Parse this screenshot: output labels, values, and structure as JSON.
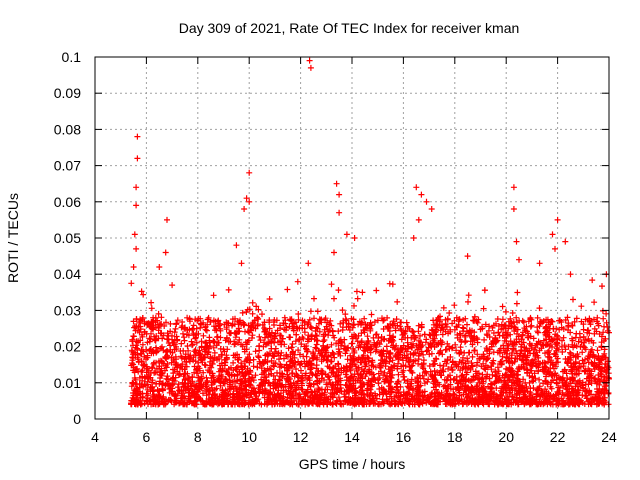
{
  "chart_data": {
    "type": "scatter",
    "title": "Day 309 of 2021, Rate Of TEC Index for receiver kman",
    "xlabel": "GPS time / hours",
    "ylabel": "ROTI / TECUs",
    "xlim": [
      4,
      24
    ],
    "ylim": [
      0,
      0.1
    ],
    "x_ticks": [
      "4",
      "6",
      "8",
      "10",
      "12",
      "14",
      "16",
      "18",
      "20",
      "22",
      "24"
    ],
    "y_ticks": [
      "0",
      "0.01",
      "0.02",
      "0.03",
      "0.04",
      "0.05",
      "0.06",
      "0.07",
      "0.08",
      "0.09",
      "0.1"
    ],
    "grid": true,
    "marker": "+",
    "color": "#ff0000",
    "x_range_of_data": [
      5.4,
      24.0
    ],
    "typical_y_band": [
      0.005,
      0.025
    ],
    "notable_points": [
      {
        "x": 5.65,
        "y": 0.078
      },
      {
        "x": 5.65,
        "y": 0.072
      },
      {
        "x": 5.6,
        "y": 0.064
      },
      {
        "x": 5.6,
        "y": 0.059
      },
      {
        "x": 5.55,
        "y": 0.051
      },
      {
        "x": 5.6,
        "y": 0.047
      },
      {
        "x": 5.5,
        "y": 0.042
      },
      {
        "x": 6.8,
        "y": 0.055
      },
      {
        "x": 6.75,
        "y": 0.046
      },
      {
        "x": 6.5,
        "y": 0.042
      },
      {
        "x": 7.0,
        "y": 0.037
      },
      {
        "x": 9.5,
        "y": 0.048
      },
      {
        "x": 9.8,
        "y": 0.058
      },
      {
        "x": 9.9,
        "y": 0.061
      },
      {
        "x": 10.0,
        "y": 0.068
      },
      {
        "x": 10.0,
        "y": 0.06
      },
      {
        "x": 9.7,
        "y": 0.043
      },
      {
        "x": 12.35,
        "y": 0.099
      },
      {
        "x": 12.4,
        "y": 0.097
      },
      {
        "x": 12.3,
        "y": 0.043
      },
      {
        "x": 13.4,
        "y": 0.065
      },
      {
        "x": 13.5,
        "y": 0.062
      },
      {
        "x": 13.5,
        "y": 0.057
      },
      {
        "x": 13.8,
        "y": 0.051
      },
      {
        "x": 14.1,
        "y": 0.05
      },
      {
        "x": 13.3,
        "y": 0.046
      },
      {
        "x": 16.5,
        "y": 0.064
      },
      {
        "x": 16.7,
        "y": 0.062
      },
      {
        "x": 16.6,
        "y": 0.055
      },
      {
        "x": 16.9,
        "y": 0.06
      },
      {
        "x": 17.1,
        "y": 0.058
      },
      {
        "x": 16.4,
        "y": 0.05
      },
      {
        "x": 18.5,
        "y": 0.045
      },
      {
        "x": 20.3,
        "y": 0.064
      },
      {
        "x": 20.3,
        "y": 0.058
      },
      {
        "x": 20.4,
        "y": 0.049
      },
      {
        "x": 20.5,
        "y": 0.044
      },
      {
        "x": 21.3,
        "y": 0.043
      },
      {
        "x": 21.8,
        "y": 0.051
      },
      {
        "x": 21.9,
        "y": 0.047
      },
      {
        "x": 22.0,
        "y": 0.055
      },
      {
        "x": 22.3,
        "y": 0.049
      },
      {
        "x": 22.5,
        "y": 0.04
      },
      {
        "x": 23.9,
        "y": 0.04
      },
      {
        "x": 22.6,
        "y": 0.033
      }
    ]
  }
}
